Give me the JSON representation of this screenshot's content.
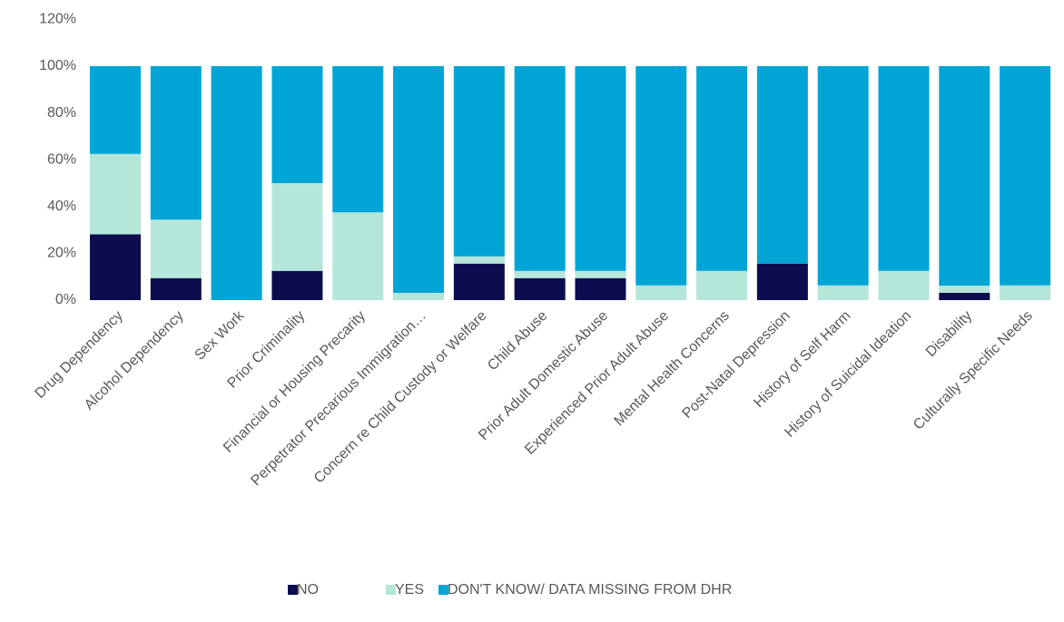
{
  "chart_data": {
    "type": "stacked_bar",
    "categories": [
      "Drug Dependency",
      "Alcohol Dependency",
      "Sex Work",
      "Prior Criminality",
      "Financial or Housing Precarity",
      "Perpetrator Precarious Immigration…",
      "Concern re Child Custody or Welfare",
      "Child Abuse",
      "Prior Adult Domestic Abuse",
      "Experienced Prior Adult Abuse",
      "Mental Health Concerns",
      "Post-Natal Depression",
      "History of Self Harm",
      "History of Suicidal Ideation",
      "Disability",
      "Culturally Specific Needs"
    ],
    "series": [
      {
        "name": "NO",
        "color": "#0c0c4e",
        "values": [
          28.1,
          9.4,
          0,
          12.5,
          0,
          0,
          15.6,
          9.4,
          9.4,
          0,
          0,
          15.6,
          0,
          0,
          3.1,
          0
        ]
      },
      {
        "name": "YES",
        "color": "#b4e6da",
        "values": [
          34.4,
          25,
          0,
          37.5,
          37.5,
          3.1,
          3.1,
          3.1,
          3.1,
          6.3,
          12.5,
          0,
          6.3,
          12.5,
          3.1,
          6.3
        ]
      },
      {
        "name": "DON'T KNOW/ DATA MISSING FROM DHR",
        "color": "#00a5d6",
        "values": [
          37.5,
          65.6,
          100,
          50,
          62.5,
          96.9,
          81.3,
          87.5,
          87.5,
          93.7,
          87.5,
          84.4,
          93.7,
          87.5,
          93.8,
          93.7
        ]
      }
    ],
    "ylim": [
      0,
      120
    ],
    "yticks": [
      {
        "value": 0,
        "label": "0%"
      },
      {
        "value": 20,
        "label": "20%"
      },
      {
        "value": 40,
        "label": "40%"
      },
      {
        "value": 60,
        "label": "60%"
      },
      {
        "value": 80,
        "label": "80%"
      },
      {
        "value": 100,
        "label": "100%"
      },
      {
        "value": 120,
        "label": "120%"
      }
    ],
    "legend": "bottom"
  }
}
